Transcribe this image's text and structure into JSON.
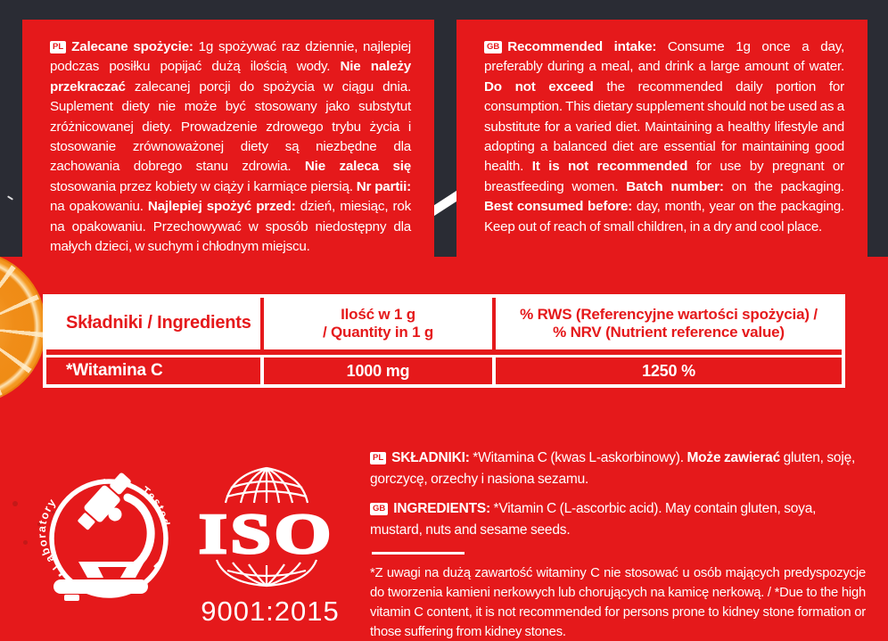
{
  "colors": {
    "red": "#E5191B",
    "dark": "#2A2C34",
    "white": "#FFFFFF",
    "orange": "#F08D18"
  },
  "panels": {
    "pl": {
      "flag": "PL",
      "segments": [
        {
          "t": "Zalecane spożycie: ",
          "b": true
        },
        {
          "t": "1g spożywać raz dziennie, najlepiej podczas posiłku popijać dużą ilością wody. "
        },
        {
          "t": "Nie należy przekraczać",
          "b": true
        },
        {
          "t": " zalecanej porcji do spożycia w ciągu dnia. Suplement diety nie może być stosowany jako substytut zróżnicowanej diety. Prowadzenie zdrowego trybu życia i stosowanie zrównoważonej diety są niezbędne dla zachowania dobrego stanu zdrowia. "
        },
        {
          "t": "Nie zaleca się",
          "b": true
        },
        {
          "t": " stosowania przez kobiety w ciąży i karmiące piersią. "
        },
        {
          "t": "Nr partii:",
          "b": true
        },
        {
          "t": " na opakowaniu. "
        },
        {
          "t": "Najlepiej spożyć przed:",
          "b": true
        },
        {
          "t": " dzień, miesiąc, rok na opakowaniu. Przechowywać w sposób niedostępny dla małych dzieci, w suchym i chłodnym miejscu."
        }
      ]
    },
    "gb": {
      "flag": "GB",
      "segments": [
        {
          "t": "Recommended intake: ",
          "b": true
        },
        {
          "t": "Consume 1g once a day, preferably during a meal, and drink a large amount of water. "
        },
        {
          "t": "Do not exceed",
          "b": true
        },
        {
          "t": " the recommended daily portion for consumption. This dietary supplement should not be used as a substitute for a varied diet. Maintaining a healthy lifestyle and adopting a balanced diet are essential for maintaining good health. "
        },
        {
          "t": "It is not recommended",
          "b": true
        },
        {
          "t": " for use by pregnant or breastfeeding women. "
        },
        {
          "t": "Batch number:",
          "b": true
        },
        {
          "t": " on the packaging. "
        },
        {
          "t": "Best consumed before:",
          "b": true
        },
        {
          "t": " day, month, year on the packaging. Keep out of reach of small children, in a dry and cool place."
        }
      ]
    }
  },
  "table": {
    "headers": [
      {
        "line1": "Składniki / Ingredients",
        "line2": ""
      },
      {
        "line1": "Ilość w 1 g",
        "line2": "/ Quantity in 1 g"
      },
      {
        "line1": "% RWS (Referencyjne wartości spożycia) /",
        "line2": "% NRV (Nutrient reference value)"
      }
    ],
    "rows": [
      {
        "cells": [
          "*Witamina C",
          "1000 mg",
          "1250 %"
        ]
      }
    ]
  },
  "badges": {
    "lab": {
      "word_left": "Laboratory",
      "word_right": "Tested"
    },
    "iso": {
      "title": "ISO",
      "subtitle": "9001:2015"
    }
  },
  "ingredients": {
    "pl": {
      "flag": "PL",
      "segments": [
        {
          "t": "SKŁADNIKI:",
          "b": true
        },
        {
          "t": " *Witamina C (kwas L-askorbinowy). "
        },
        {
          "t": "Może zawierać",
          "b": true
        },
        {
          "t": " gluten, soję, gorczycę, orzechy i nasiona sezamu."
        }
      ]
    },
    "gb": {
      "flag": "GB",
      "segments": [
        {
          "t": "INGREDIENTS:",
          "b": true
        },
        {
          "t": " *Vitamin C (L-ascorbic acid). May contain gluten, soya, mustard, nuts and sesame seeds."
        }
      ]
    }
  },
  "footnote": "*Z uwagi na dużą zawartość witaminy C nie stosować u osób mających predyspozycje do tworzenia kamieni nerkowych lub chorujących na kamicę nerkową. / *Due to the high vitamin C content, it is not recommended for persons prone to kidney stone formation or those suffering from kidney stones."
}
